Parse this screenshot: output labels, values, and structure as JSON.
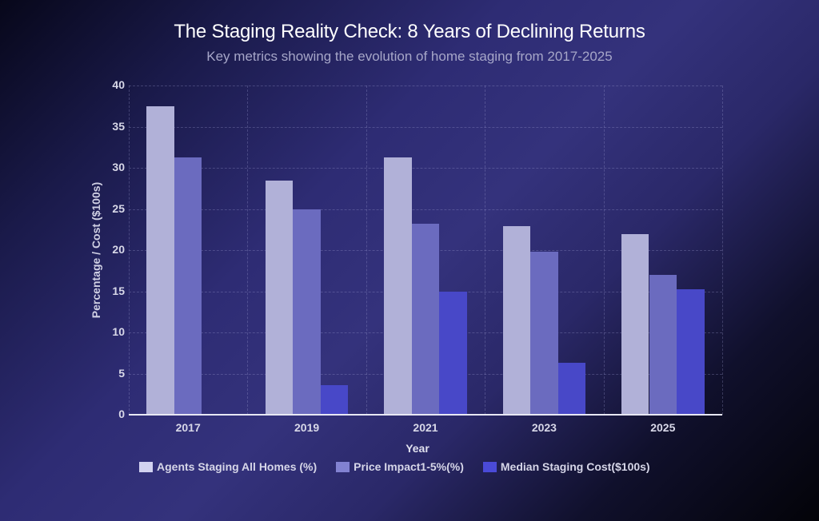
{
  "header": {
    "title": "The Staging Reality Check: 8 Years of Declining Returns",
    "subtitle": "Key metrics showing the evolution of home staging from 2017-2025"
  },
  "axes": {
    "xlabel": "Year",
    "ylabel": "Percentage / Cost ($100s)",
    "yticks": [
      "0",
      "5",
      "10",
      "15",
      "20",
      "25",
      "30",
      "35",
      "40"
    ]
  },
  "legend": [
    {
      "label": "Agents Staging All Homes (%)",
      "color": "#d2d2f0"
    },
    {
      "label": "Price Impact1-5%(%)",
      "color": "#8282d2"
    },
    {
      "label": "Median Staging  Cost($100s)",
      "color": "#4a4ad8"
    }
  ],
  "colors": {
    "agents": "#b1b1d8",
    "price": "#6b6bbf",
    "median": "#4848c8"
  },
  "chart_data": {
    "type": "bar",
    "title": "The Staging Reality Check: 8 Years of Declining Returns",
    "subtitle": "Key metrics showing the evolution of home staging from 2017-2025",
    "xlabel": "Year",
    "ylabel": "Percentage / Cost ($100s)",
    "ylim": [
      0,
      40
    ],
    "yticks": [
      0,
      5,
      10,
      15,
      20,
      25,
      30,
      35,
      40
    ],
    "grid": true,
    "legend_position": "bottom",
    "categories": [
      "2017",
      "2019",
      "2021",
      "2023",
      "2025"
    ],
    "series": [
      {
        "name": "Agents Staging All Homes (%)",
        "values": [
          37.5,
          28.4,
          31.3,
          22.9,
          21.9
        ]
      },
      {
        "name": "Price Impact1-5%(%)",
        "values": [
          31.3,
          25.0,
          23.2,
          19.8,
          17.0
        ]
      },
      {
        "name": "Median Staging  Cost($100s)",
        "values": [
          0,
          3.6,
          15.0,
          6.3,
          15.2
        ]
      }
    ]
  }
}
